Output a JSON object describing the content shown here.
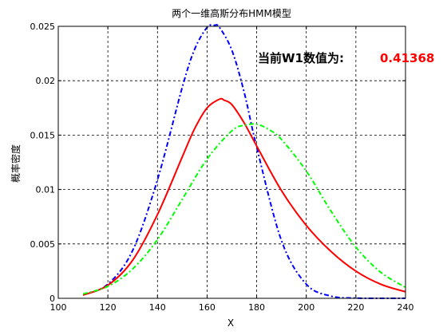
{
  "chart_data": {
    "type": "line",
    "title": "两个一维高斯分布HMM模型",
    "xlabel": "X",
    "ylabel": "概率密度",
    "xlim": [
      100,
      240
    ],
    "ylim": [
      0,
      0.025
    ],
    "grid": true,
    "xticks": [
      "100",
      "120",
      "140",
      "160",
      "180",
      "200",
      "220",
      "240"
    ],
    "yticks": [
      "0",
      "0.005",
      "0.01",
      "0.015",
      "0.02",
      "0.025"
    ],
    "series": [
      {
        "color": "#0000ff",
        "style": "dashdot",
        "x": [
          110,
          120,
          130,
          140,
          150,
          155,
          160,
          163,
          165,
          170,
          175,
          180,
          190,
          200,
          210,
          220,
          230,
          240
        ],
        "y": [
          0.0003,
          0.0013,
          0.0044,
          0.0109,
          0.0194,
          0.0229,
          0.0249,
          0.0251,
          0.0249,
          0.0228,
          0.0189,
          0.0139,
          0.0053,
          0.0013,
          0.0002,
          2e-05,
          0.0,
          0.0
        ]
      },
      {
        "color": "#ff0000",
        "style": "solid",
        "x": [
          110,
          120,
          130,
          140,
          150,
          155,
          160,
          165,
          167,
          170,
          175,
          180,
          190,
          200,
          210,
          220,
          230,
          240
        ],
        "y": [
          0.0003,
          0.0012,
          0.0035,
          0.0077,
          0.013,
          0.0156,
          0.0175,
          0.0183,
          0.0182,
          0.0178,
          0.0161,
          0.014,
          0.0099,
          0.0067,
          0.0043,
          0.0025,
          0.0013,
          0.0006
        ]
      },
      {
        "color": "#00ff00",
        "style": "dashdot",
        "x": [
          110,
          120,
          130,
          140,
          150,
          160,
          170,
          175,
          180,
          185,
          190,
          200,
          210,
          220,
          230,
          240
        ],
        "y": [
          0.0004,
          0.0011,
          0.0027,
          0.0054,
          0.0091,
          0.0128,
          0.0154,
          0.0159,
          0.016,
          0.0155,
          0.0146,
          0.0117,
          0.008,
          0.0047,
          0.0024,
          0.001
        ]
      }
    ]
  },
  "annotation": {
    "label": "当前W1数值为:",
    "value": "0.41368"
  }
}
